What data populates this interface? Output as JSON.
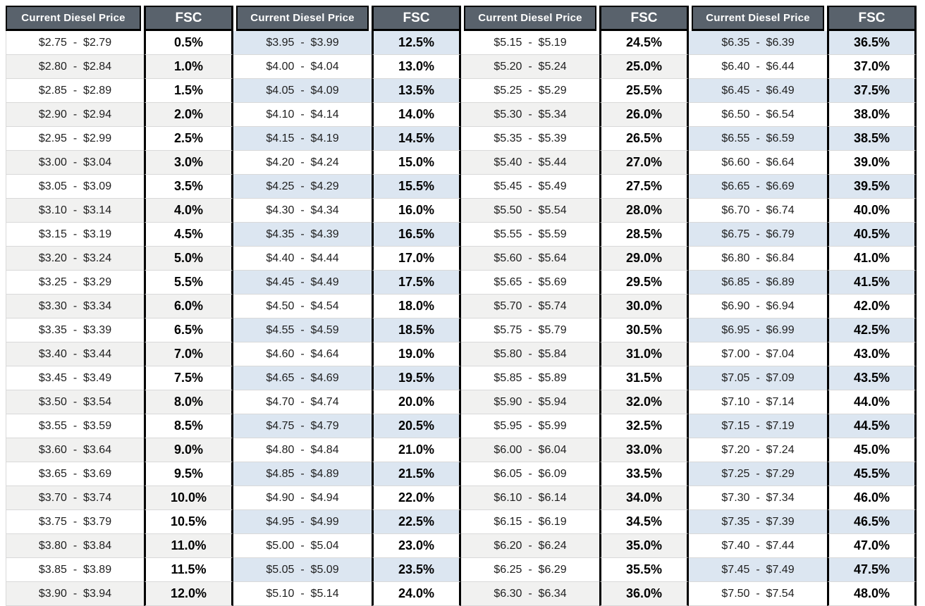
{
  "colors": {
    "header_bg": "#59626c",
    "header_text": "#ffffff",
    "border_black": "#000000",
    "separator": "#d9d9d9",
    "stripe_gray": "#f1f1f0",
    "stripe_blue": "#dce6f1"
  },
  "table": {
    "groups": [
      {
        "price_header": "Current Diesel Price",
        "fsc_header": "FSC",
        "stripe": "gray",
        "rows": [
          {
            "price": "$2.75  -  $2.79",
            "fsc": "0.5%"
          },
          {
            "price": "$2.80  -  $2.84",
            "fsc": "1.0%"
          },
          {
            "price": "$2.85  -  $2.89",
            "fsc": "1.5%"
          },
          {
            "price": "$2.90  -  $2.94",
            "fsc": "2.0%"
          },
          {
            "price": "$2.95  -  $2.99",
            "fsc": "2.5%"
          },
          {
            "price": "$3.00  -  $3.04",
            "fsc": "3.0%"
          },
          {
            "price": "$3.05  -  $3.09",
            "fsc": "3.5%"
          },
          {
            "price": "$3.10  -  $3.14",
            "fsc": "4.0%"
          },
          {
            "price": "$3.15  -  $3.19",
            "fsc": "4.5%"
          },
          {
            "price": "$3.20  -  $3.24",
            "fsc": "5.0%"
          },
          {
            "price": "$3.25  -  $3.29",
            "fsc": "5.5%"
          },
          {
            "price": "$3.30  -  $3.34",
            "fsc": "6.0%"
          },
          {
            "price": "$3.35  -  $3.39",
            "fsc": "6.5%"
          },
          {
            "price": "$3.40  -  $3.44",
            "fsc": "7.0%"
          },
          {
            "price": "$3.45  -  $3.49",
            "fsc": "7.5%"
          },
          {
            "price": "$3.50  -  $3.54",
            "fsc": "8.0%"
          },
          {
            "price": "$3.55  -  $3.59",
            "fsc": "8.5%"
          },
          {
            "price": "$3.60  -  $3.64",
            "fsc": "9.0%"
          },
          {
            "price": "$3.65  -  $3.69",
            "fsc": "9.5%"
          },
          {
            "price": "$3.70  -  $3.74",
            "fsc": "10.0%"
          },
          {
            "price": "$3.75  -  $3.79",
            "fsc": "10.5%"
          },
          {
            "price": "$3.80  -  $3.84",
            "fsc": "11.0%"
          },
          {
            "price": "$3.85  -  $3.89",
            "fsc": "11.5%"
          },
          {
            "price": "$3.90  -  $3.94",
            "fsc": "12.0%"
          }
        ]
      },
      {
        "price_header": "Current Diesel Price",
        "fsc_header": "FSC",
        "stripe": "blue",
        "rows": [
          {
            "price": "$3.95  -  $3.99",
            "fsc": "12.5%"
          },
          {
            "price": "$4.00  -  $4.04",
            "fsc": "13.0%"
          },
          {
            "price": "$4.05  -  $4.09",
            "fsc": "13.5%"
          },
          {
            "price": "$4.10  -  $4.14",
            "fsc": "14.0%"
          },
          {
            "price": "$4.15  -  $4.19",
            "fsc": "14.5%"
          },
          {
            "price": "$4.20  -  $4.24",
            "fsc": "15.0%"
          },
          {
            "price": "$4.25  -  $4.29",
            "fsc": "15.5%"
          },
          {
            "price": "$4.30  -  $4.34",
            "fsc": "16.0%"
          },
          {
            "price": "$4.35  -  $4.39",
            "fsc": "16.5%"
          },
          {
            "price": "$4.40  -  $4.44",
            "fsc": "17.0%"
          },
          {
            "price": "$4.45  -  $4.49",
            "fsc": "17.5%"
          },
          {
            "price": "$4.50  -  $4.54",
            "fsc": "18.0%"
          },
          {
            "price": "$4.55  -  $4.59",
            "fsc": "18.5%"
          },
          {
            "price": "$4.60  -  $4.64",
            "fsc": "19.0%"
          },
          {
            "price": "$4.65  -  $4.69",
            "fsc": "19.5%"
          },
          {
            "price": "$4.70  -  $4.74",
            "fsc": "20.0%"
          },
          {
            "price": "$4.75  -  $4.79",
            "fsc": "20.5%"
          },
          {
            "price": "$4.80  -  $4.84",
            "fsc": "21.0%"
          },
          {
            "price": "$4.85  -  $4.89",
            "fsc": "21.5%"
          },
          {
            "price": "$4.90  -  $4.94",
            "fsc": "22.0%"
          },
          {
            "price": "$4.95  -  $4.99",
            "fsc": "22.5%"
          },
          {
            "price": "$5.00  -  $5.04",
            "fsc": "23.0%"
          },
          {
            "price": "$5.05  -  $5.09",
            "fsc": "23.5%"
          },
          {
            "price": "$5.10  -  $5.14",
            "fsc": "24.0%"
          }
        ]
      },
      {
        "price_header": "Current Diesel Price",
        "fsc_header": "FSC",
        "stripe": "gray",
        "rows": [
          {
            "price": "$5.15  -  $5.19",
            "fsc": "24.5%"
          },
          {
            "price": "$5.20  -  $5.24",
            "fsc": "25.0%"
          },
          {
            "price": "$5.25  -  $5.29",
            "fsc": "25.5%"
          },
          {
            "price": "$5.30  -  $5.34",
            "fsc": "26.0%"
          },
          {
            "price": "$5.35  -  $5.39",
            "fsc": "26.5%"
          },
          {
            "price": "$5.40  -  $5.44",
            "fsc": "27.0%"
          },
          {
            "price": "$5.45  -  $5.49",
            "fsc": "27.5%"
          },
          {
            "price": "$5.50  -  $5.54",
            "fsc": "28.0%"
          },
          {
            "price": "$5.55  -  $5.59",
            "fsc": "28.5%"
          },
          {
            "price": "$5.60  -  $5.64",
            "fsc": "29.0%"
          },
          {
            "price": "$5.65  -  $5.69",
            "fsc": "29.5%"
          },
          {
            "price": "$5.70  -  $5.74",
            "fsc": "30.0%"
          },
          {
            "price": "$5.75  -  $5.79",
            "fsc": "30.5%"
          },
          {
            "price": "$5.80  -  $5.84",
            "fsc": "31.0%"
          },
          {
            "price": "$5.85  -  $5.89",
            "fsc": "31.5%"
          },
          {
            "price": "$5.90  -  $5.94",
            "fsc": "32.0%"
          },
          {
            "price": "$5.95  -  $5.99",
            "fsc": "32.5%"
          },
          {
            "price": "$6.00  -  $6.04",
            "fsc": "33.0%"
          },
          {
            "price": "$6.05  -  $6.09",
            "fsc": "33.5%"
          },
          {
            "price": "$6.10  -  $6.14",
            "fsc": "34.0%"
          },
          {
            "price": "$6.15  -  $6.19",
            "fsc": "34.5%"
          },
          {
            "price": "$6.20  -  $6.24",
            "fsc": "35.0%"
          },
          {
            "price": "$6.25  -  $6.29",
            "fsc": "35.5%"
          },
          {
            "price": "$6.30  -  $6.34",
            "fsc": "36.0%"
          }
        ]
      },
      {
        "price_header": "Current Diesel Price",
        "fsc_header": "FSC",
        "stripe": "blue",
        "rows": [
          {
            "price": "$6.35  -  $6.39",
            "fsc": "36.5%"
          },
          {
            "price": "$6.40  -  $6.44",
            "fsc": "37.0%"
          },
          {
            "price": "$6.45  -  $6.49",
            "fsc": "37.5%"
          },
          {
            "price": "$6.50  -  $6.54",
            "fsc": "38.0%"
          },
          {
            "price": "$6.55  -  $6.59",
            "fsc": "38.5%"
          },
          {
            "price": "$6.60  -  $6.64",
            "fsc": "39.0%"
          },
          {
            "price": "$6.65  -  $6.69",
            "fsc": "39.5%"
          },
          {
            "price": "$6.70  -  $6.74",
            "fsc": "40.0%"
          },
          {
            "price": "$6.75  -  $6.79",
            "fsc": "40.5%"
          },
          {
            "price": "$6.80  -  $6.84",
            "fsc": "41.0%"
          },
          {
            "price": "$6.85  -  $6.89",
            "fsc": "41.5%"
          },
          {
            "price": "$6.90  -  $6.94",
            "fsc": "42.0%"
          },
          {
            "price": "$6.95  -  $6.99",
            "fsc": "42.5%"
          },
          {
            "price": "$7.00  -  $7.04",
            "fsc": "43.0%"
          },
          {
            "price": "$7.05  -  $7.09",
            "fsc": "43.5%"
          },
          {
            "price": "$7.10  -  $7.14",
            "fsc": "44.0%"
          },
          {
            "price": "$7.15  -  $7.19",
            "fsc": "44.5%"
          },
          {
            "price": "$7.20  -  $7.24",
            "fsc": "45.0%"
          },
          {
            "price": "$7.25  -  $7.29",
            "fsc": "45.5%"
          },
          {
            "price": "$7.30  -  $7.34",
            "fsc": "46.0%"
          },
          {
            "price": "$7.35  -  $7.39",
            "fsc": "46.5%"
          },
          {
            "price": "$7.40  -  $7.44",
            "fsc": "47.0%"
          },
          {
            "price": "$7.45  -  $7.49",
            "fsc": "47.5%"
          },
          {
            "price": "$7.50  -  $7.54",
            "fsc": "48.0%"
          }
        ]
      }
    ]
  }
}
